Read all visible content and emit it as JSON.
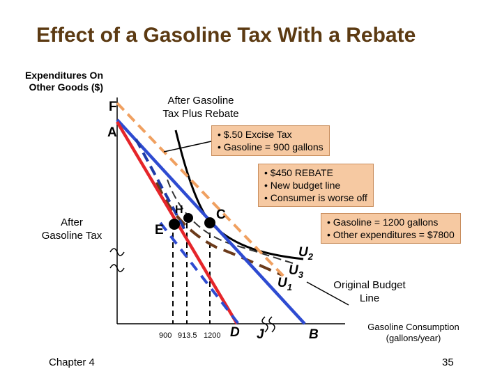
{
  "title": "Effect of a Gasoline Tax With a Rebate",
  "y_axis_label": "Expenditures On Other Goods ($)",
  "x_axis_label": "Gasoline Consumption (gallons/year)",
  "points": {
    "F": "F",
    "A": "A",
    "H": "H",
    "C": "C",
    "E": "E",
    "D": "D",
    "J": "J",
    "B": "B",
    "U1": "U",
    "U1_sub": "1",
    "U2": "U",
    "U2_sub": "2",
    "U3": "U",
    "U3_sub": "3"
  },
  "labels": {
    "after_tax_rebate": "After Gasoline Tax Plus Rebate",
    "after_tax": "After Gasoline Tax",
    "original_budget": "Original Budget Line"
  },
  "callouts": {
    "excise": [
      "• $.50 Excise Tax",
      "• Gasoline = 900 gallons"
    ],
    "rebate": [
      "• $450 REBATE",
      "• New budget line",
      "• Consumer is worse off"
    ],
    "original": [
      "• Gasoline = 1200 gallons",
      "• Other expenditures = $7800"
    ]
  },
  "x_ticks": [
    "900",
    "913.5",
    "1200"
  ],
  "footer": {
    "chapter": "Chapter 4",
    "page": "35"
  },
  "colors": {
    "title": "#5c3a12",
    "original_budget": "#2e4bd1",
    "after_tax_budget": "#e5252a",
    "rebate_budget": "#f0a060",
    "indifference_u1": "#6b3a1a",
    "indifference_u2": "#000000",
    "indifference_u3": "#222244",
    "callout_fill": "#f6c9a2"
  }
}
